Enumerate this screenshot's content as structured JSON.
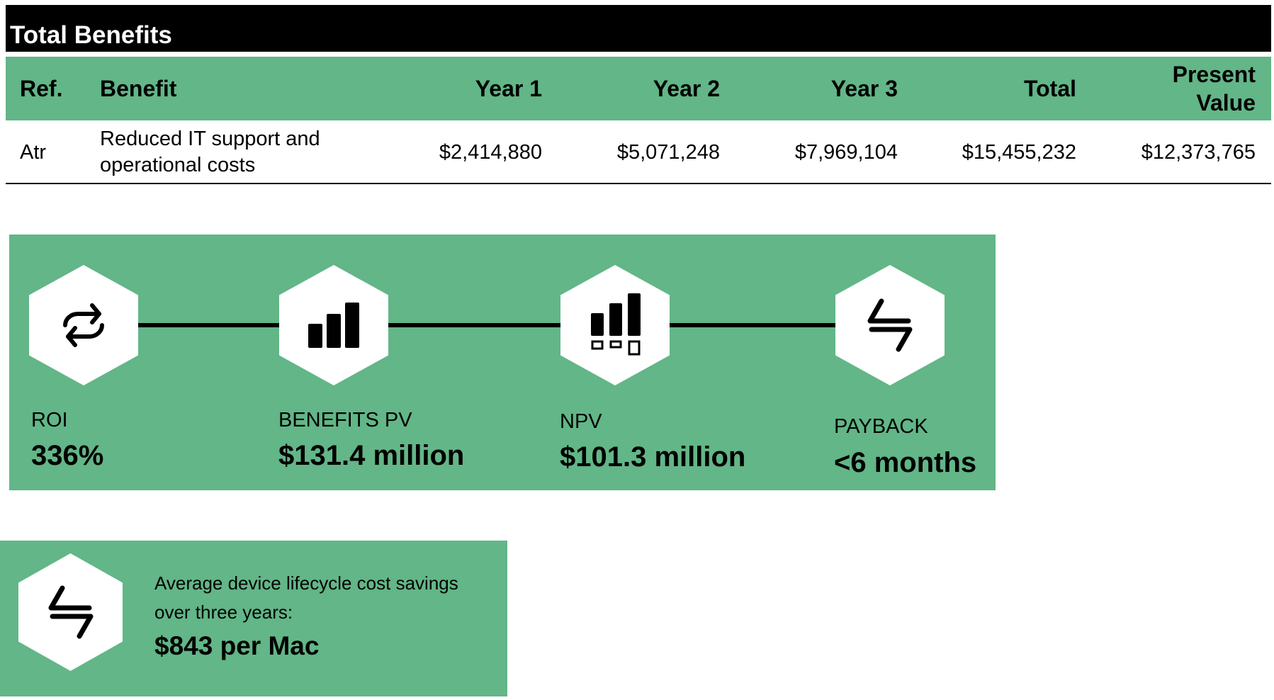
{
  "title": "Total Benefits",
  "colors": {
    "accent_green": "#62b687",
    "header_black": "#000000"
  },
  "table": {
    "headers": [
      "Ref.",
      "Benefit",
      "Year 1",
      "Year 2",
      "Year 3",
      "Total",
      "Present",
      "Value"
    ],
    "row": {
      "ref": "Atr",
      "benefit_line1": "Reduced IT support and",
      "benefit_line2": "operational costs",
      "year1": "$2,414,880",
      "year2": "$5,071,248",
      "year3": "$7,969,104",
      "total": "$15,455,232",
      "present_value": "$12,373,765"
    }
  },
  "metrics": [
    {
      "label": "ROI",
      "value": "336%",
      "icon": "refresh-cycle-icon"
    },
    {
      "label": "BENEFITS PV",
      "value": "$131.4 million",
      "icon": "bar-chart-icon"
    },
    {
      "label": "NPV",
      "value": "$101.3 million",
      "icon": "bar-chart-boxes-icon"
    },
    {
      "label": "PAYBACK",
      "value": "<6 months",
      "icon": "exchange-arrows-icon"
    }
  ],
  "savings": {
    "line1": "Average device lifecycle cost savings",
    "line2": "over three years:",
    "value": "$843 per Mac",
    "icon": "exchange-arrows-icon"
  }
}
